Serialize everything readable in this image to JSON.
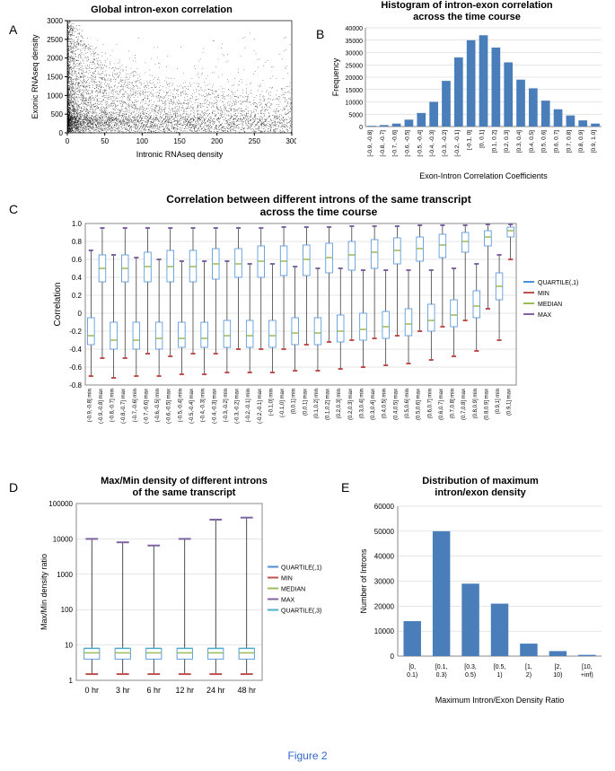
{
  "panelA": {
    "label": "A",
    "title": "Global intron-exon correlation",
    "xlabel": "Intronic RNAseq density",
    "ylabel": "Exonic RNAseq density",
    "xlim": [
      0,
      300
    ],
    "ylim": [
      0,
      3000
    ],
    "xticks": [
      0,
      50,
      100,
      150,
      200,
      250,
      300
    ],
    "yticks": [
      0,
      500,
      1000,
      1500,
      2000,
      2500,
      3000
    ],
    "point_color": "#000000",
    "label_fontsize": 9,
    "title_fontsize": 11
  },
  "panelB": {
    "label": "B",
    "title": "Histogram of intron-exon correlation\nacross the time course",
    "xlabel": "Exon-Intron Correlation Coefficients",
    "ylabel": "Frequency",
    "categories": [
      "[-0.9, -0.8]",
      "[-0.8, -0.7]",
      "[-0.7, -0.6]",
      "[-0.6, -0.5]",
      "[-0.5, -0.4]",
      "[-0.4, -0.3]",
      "[-0.3, -0.2]",
      "[-0.2, -0.1]",
      "[-0.1, 0]",
      "[0, 0.1]",
      "[0.1, 0.2]",
      "[0.2, 0.3]",
      "[0.3, 0.4]",
      "[0.4, 0.5]",
      "[0.5, 0.6]",
      "[0.6, 0.7]",
      "[0.7, 0.8]",
      "[0.8, 0.9]",
      "[0.9, 1.0]"
    ],
    "values": [
      300,
      600,
      1200,
      2800,
      5500,
      10000,
      18500,
      28000,
      35000,
      37000,
      32000,
      26000,
      19000,
      15500,
      10500,
      7000,
      4500,
      2500,
      1200
    ],
    "bar_color": "#4a7ebb",
    "ylim": [
      0,
      40000
    ],
    "ytick_step": 5000,
    "title_fontsize": 11,
    "label_fontsize": 9
  },
  "panelC": {
    "label": "C",
    "title": "Correlation between different introns of the same transcript\nacross the time course",
    "xlabel": "",
    "ylabel": "Correlation",
    "ylim": [
      -0.8,
      1.0
    ],
    "ytick_step": 0.2,
    "categories": [
      "(-0.9,-0.8] min",
      "(-0.9,-0.8] max",
      "(-0.8,-0.7] min",
      "(-0.8,-0.7] max",
      "(-0.7,-0.6] min",
      "(-0.7,-0.6] max",
      "(-0.6,-0.5] min",
      "(-0.6,-0.5] max",
      "(-0.5,-0.4] min",
      "(-0.5,-0.4] max",
      "(-0.4,-0.3] min",
      "(-0.4,-0.3] max",
      "(-0.3,-0.2] min",
      "(-0.3,-0.2] max",
      "(-0.2,-0.1] min",
      "(-0.2,-0.1] max",
      "(-0.1,0] min",
      "(-0.1,0] max",
      "(0,0.1] min",
      "(0,0.1] max",
      "(0.1,0.2] min",
      "(0.1,0.2] max",
      "(0.2,0.3] min",
      "(0.2,0.3] max",
      "(0.3,0.4] min",
      "(0.3,0.4] max",
      "(0.4,0.5] min",
      "(0.4,0.5] max",
      "(0.5,0.6] min",
      "(0.5,0.6] max",
      "(0.6,0.7] min",
      "(0.6,0.7] max",
      "(0.7,0.8] min",
      "(0.7,0.8] max",
      "(0.8,0.9] min",
      "(0.8,0.9] max",
      "(0.9,1] min",
      "(0.9,1] max"
    ],
    "boxes": [
      {
        "q1": -0.35,
        "med": -0.25,
        "q3": -0.05,
        "min": -0.7,
        "max": 0.7
      },
      {
        "q1": 0.35,
        "med": 0.5,
        "q3": 0.65,
        "min": -0.5,
        "max": 0.95
      },
      {
        "q1": -0.4,
        "med": -0.3,
        "q3": -0.1,
        "min": -0.72,
        "max": 0.65
      },
      {
        "q1": 0.35,
        "med": 0.5,
        "q3": 0.65,
        "min": -0.5,
        "max": 0.95
      },
      {
        "q1": -0.4,
        "med": -0.3,
        "q3": -0.1,
        "min": -0.7,
        "max": 0.62
      },
      {
        "q1": 0.35,
        "med": 0.52,
        "q3": 0.68,
        "min": -0.45,
        "max": 0.95
      },
      {
        "q1": -0.4,
        "med": -0.28,
        "q3": -0.1,
        "min": -0.7,
        "max": 0.6
      },
      {
        "q1": 0.35,
        "med": 0.52,
        "q3": 0.7,
        "min": -0.48,
        "max": 0.95
      },
      {
        "q1": -0.38,
        "med": -0.28,
        "q3": -0.1,
        "min": -0.68,
        "max": 0.58
      },
      {
        "q1": 0.35,
        "med": 0.52,
        "q3": 0.7,
        "min": -0.45,
        "max": 0.95
      },
      {
        "q1": -0.38,
        "med": -0.28,
        "q3": -0.1,
        "min": -0.68,
        "max": 0.58
      },
      {
        "q1": 0.38,
        "med": 0.55,
        "q3": 0.72,
        "min": -0.45,
        "max": 0.95
      },
      {
        "q1": -0.38,
        "med": -0.25,
        "q3": -0.08,
        "min": -0.66,
        "max": 0.58
      },
      {
        "q1": 0.4,
        "med": 0.55,
        "q3": 0.72,
        "min": -0.4,
        "max": 0.95
      },
      {
        "q1": -0.38,
        "med": -0.25,
        "q3": -0.08,
        "min": -0.66,
        "max": 0.55
      },
      {
        "q1": 0.4,
        "med": 0.58,
        "q3": 0.75,
        "min": -0.4,
        "max": 0.95
      },
      {
        "q1": -0.38,
        "med": -0.25,
        "q3": -0.08,
        "min": -0.66,
        "max": 0.55
      },
      {
        "q1": 0.42,
        "med": 0.58,
        "q3": 0.75,
        "min": -0.4,
        "max": 0.96
      },
      {
        "q1": -0.35,
        "med": -0.22,
        "q3": -0.05,
        "min": -0.64,
        "max": 0.52
      },
      {
        "q1": 0.42,
        "med": 0.6,
        "q3": 0.76,
        "min": -0.35,
        "max": 0.96
      },
      {
        "q1": -0.35,
        "med": -0.22,
        "q3": -0.05,
        "min": -0.64,
        "max": 0.5
      },
      {
        "q1": 0.45,
        "med": 0.62,
        "q3": 0.78,
        "min": -0.32,
        "max": 0.96
      },
      {
        "q1": -0.32,
        "med": -0.2,
        "q3": -0.02,
        "min": -0.62,
        "max": 0.5
      },
      {
        "q1": 0.48,
        "med": 0.65,
        "q3": 0.8,
        "min": -0.3,
        "max": 0.97
      },
      {
        "q1": -0.3,
        "med": -0.18,
        "q3": 0.0,
        "min": -0.6,
        "max": 0.48
      },
      {
        "q1": 0.5,
        "med": 0.68,
        "q3": 0.82,
        "min": -0.28,
        "max": 0.97
      },
      {
        "q1": -0.28,
        "med": -0.15,
        "q3": 0.02,
        "min": -0.58,
        "max": 0.48
      },
      {
        "q1": 0.55,
        "med": 0.7,
        "q3": 0.84,
        "min": -0.25,
        "max": 0.97
      },
      {
        "q1": -0.25,
        "med": -0.12,
        "q3": 0.05,
        "min": -0.56,
        "max": 0.48
      },
      {
        "q1": 0.58,
        "med": 0.72,
        "q3": 0.85,
        "min": -0.2,
        "max": 0.98
      },
      {
        "q1": -0.2,
        "med": -0.08,
        "q3": 0.1,
        "min": -0.52,
        "max": 0.48
      },
      {
        "q1": 0.62,
        "med": 0.76,
        "q3": 0.88,
        "min": -0.15,
        "max": 0.98
      },
      {
        "q1": -0.15,
        "med": -0.02,
        "q3": 0.15,
        "min": -0.48,
        "max": 0.5
      },
      {
        "q1": 0.68,
        "med": 0.8,
        "q3": 0.9,
        "min": -0.08,
        "max": 0.98
      },
      {
        "q1": -0.05,
        "med": 0.08,
        "q3": 0.25,
        "min": -0.42,
        "max": 0.55
      },
      {
        "q1": 0.75,
        "med": 0.85,
        "q3": 0.92,
        "min": 0.05,
        "max": 0.99
      },
      {
        "q1": 0.15,
        "med": 0.3,
        "q3": 0.45,
        "min": -0.3,
        "max": 0.65
      },
      {
        "q1": 0.85,
        "med": 0.92,
        "q3": 0.96,
        "min": 0.6,
        "max": 0.99
      }
    ],
    "colors": {
      "q1": "#4a90d9",
      "min": "#c0504d",
      "median": "#9bbb59",
      "max": "#8064a2",
      "box": "#4a90d9",
      "whisker": "#000000"
    },
    "legend": [
      "QUARTILE(,1)",
      "MIN",
      "MEDIAN",
      "MAX"
    ],
    "legend_colors": [
      "#4a90d9",
      "#c0504d",
      "#9bbb59",
      "#8064a2"
    ],
    "title_fontsize": 12
  },
  "panelD": {
    "label": "D",
    "title": "Max/Min density of different introns\nof the same transcript",
    "ylabel": "Max/Min density ratio",
    "categories": [
      "0 hr",
      "3 hr",
      "6 hr",
      "12 hr",
      "24 hr",
      "48 hr"
    ],
    "boxes": [
      {
        "q1": 4,
        "med": 6,
        "q3": 8,
        "min": 1.5,
        "max": 10000
      },
      {
        "q1": 4,
        "med": 6,
        "q3": 8,
        "min": 1.5,
        "max": 8000
      },
      {
        "q1": 4,
        "med": 6,
        "q3": 8,
        "min": 1.5,
        "max": 6500
      },
      {
        "q1": 4,
        "med": 6,
        "q3": 8,
        "min": 1.5,
        "max": 10000
      },
      {
        "q1": 4,
        "med": 6,
        "q3": 8,
        "min": 1.5,
        "max": 35000
      },
      {
        "q1": 4,
        "med": 6,
        "q3": 8,
        "min": 1.5,
        "max": 40000
      }
    ],
    "ylog": true,
    "ylim": [
      1,
      100000
    ],
    "yticks": [
      1,
      10,
      100,
      1000,
      10000,
      100000
    ],
    "colors": {
      "q1": "#4a90d9",
      "min": "#c0504d",
      "median": "#9bbb59",
      "max": "#8064a2",
      "q3": "#4bacc6",
      "box": "#4a90d9",
      "whisker": "#000000"
    },
    "legend": [
      "QUARTILE(,1)",
      "MIN",
      "MEDIAN",
      "MAX",
      "QUARTILE(,3)"
    ],
    "legend_colors": [
      "#4a90d9",
      "#c0504d",
      "#9bbb59",
      "#8064a2",
      "#4bacc6"
    ],
    "title_fontsize": 11
  },
  "panelE": {
    "label": "E",
    "title": "Distribution of maximum\nintron/exon density",
    "xlabel": "Maximum Intron/Exon Density Ratio",
    "ylabel": "Number of Introns",
    "categories": [
      "[0, 0.1)",
      "[0.1, 0.3)",
      "[0.3, 0.5)",
      "[0.5, 1)",
      "[1, 2)",
      "[2, 10)",
      "[10, +inf)"
    ],
    "values": [
      14000,
      50000,
      29000,
      21000,
      5000,
      2000,
      500
    ],
    "bar_color": "#4a7ebb",
    "ylim": [
      0,
      60000
    ],
    "ytick_step": 10000,
    "title_fontsize": 11
  },
  "caption": "Figure 2"
}
